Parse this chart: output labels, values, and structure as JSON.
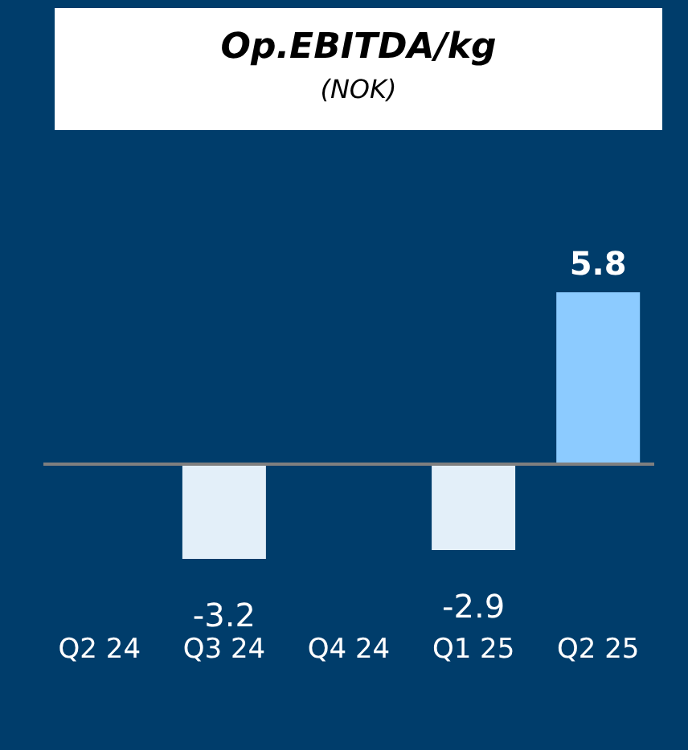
{
  "chart_data": {
    "type": "bar",
    "title": "Op.EBITDA/kg",
    "subtitle": "(NOK)",
    "categories": [
      "Q2 24",
      "Q3 24",
      "Q4 24",
      "Q1 25",
      "Q2 25"
    ],
    "values": [
      null,
      -3.2,
      null,
      -2.9,
      5.8
    ],
    "colors": [
      null,
      "#e3eff9",
      null,
      "#e3eff9",
      "#8ccbff"
    ],
    "data_labels": true
  }
}
